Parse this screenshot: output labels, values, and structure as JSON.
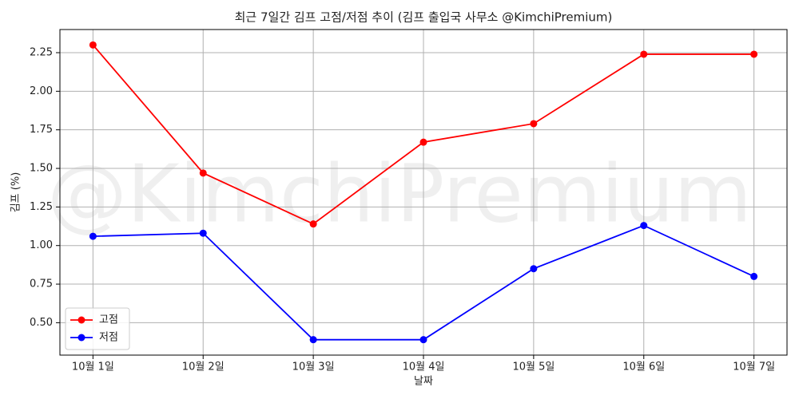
{
  "chart_data": {
    "type": "line",
    "title": "최근 7일간 김프 고점/저점 추이 (김프 출입국 사무소 @KimchiPremium)",
    "watermark": "@KimchiPremium",
    "x_label": "날짜",
    "y_label": "김프 (%)",
    "categories": [
      "10월 1일",
      "10월 2일",
      "10월 3일",
      "10월 4일",
      "10월 5일",
      "10월 6일",
      "10월 7일"
    ],
    "series": [
      {
        "name": "고점",
        "color": "#ff0000",
        "values": [
          2.3,
          1.47,
          1.14,
          1.67,
          1.79,
          2.24,
          2.24
        ]
      },
      {
        "name": "저점",
        "color": "#0000ff",
        "values": [
          1.06,
          1.08,
          0.39,
          0.39,
          0.85,
          1.13,
          0.8
        ]
      }
    ],
    "ylim": [
      0.29,
      2.4
    ],
    "yticks": [
      {
        "value": 0.5,
        "label": "0.50"
      },
      {
        "value": 0.75,
        "label": "0.75"
      },
      {
        "value": 1,
        "label": "1.00"
      },
      {
        "value": 1.25,
        "label": "1.25"
      },
      {
        "value": 1.5,
        "label": "1.50"
      },
      {
        "value": 1.75,
        "label": "1.75"
      },
      {
        "value": 2,
        "label": "2.00"
      },
      {
        "value": 2.25,
        "label": "2.25"
      }
    ],
    "grid": true,
    "legend": "lower left"
  }
}
